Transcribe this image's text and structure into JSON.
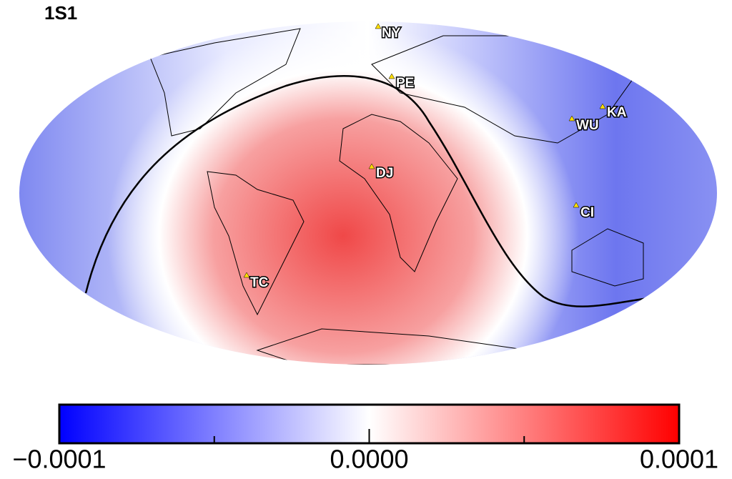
{
  "title": "1S1",
  "stations": [
    {
      "label": "NY"
    },
    {
      "label": "PE"
    },
    {
      "label": "KA"
    },
    {
      "label": "WU"
    },
    {
      "label": "DJ"
    },
    {
      "label": "CI"
    },
    {
      "label": "TC"
    }
  ],
  "colorbar": {
    "range": [
      -0.0001,
      0.0001
    ],
    "ticks": [
      {
        "value": -0.0001,
        "label": "−0.0001"
      },
      {
        "value": 0,
        "label": "0.0000"
      },
      0.0001
    ],
    "minor_ticks": [
      -5e-05,
      5e-05
    ],
    "colors": [
      "#0000ff",
      "#ffffff",
      "#ff0000"
    ]
  }
}
